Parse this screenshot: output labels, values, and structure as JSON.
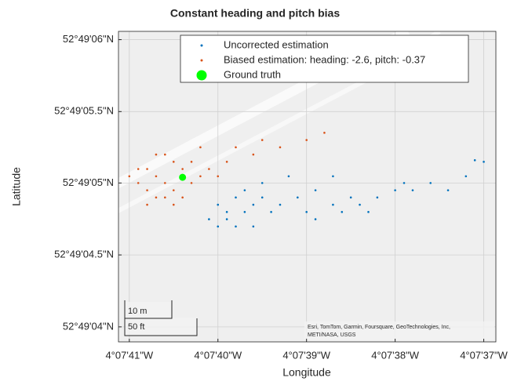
{
  "chart_data": {
    "type": "scatter",
    "title": "Constant heading and pitch bias",
    "x_label": "Longitude",
    "y_label": "Latitude",
    "xlim": [
      -4.12809,
      -4.126906
    ],
    "ylim": [
      52.817749,
      52.818349
    ],
    "xticks": [
      {
        "value": -4.128056,
        "label": "4°07'41\"W"
      },
      {
        "value": -4.127778,
        "label": "4°07'40\"W"
      },
      {
        "value": -4.1275,
        "label": "4°07'39\"W"
      },
      {
        "value": -4.127222,
        "label": "4°07'38\"W"
      },
      {
        "value": -4.126944,
        "label": "4°07'37\"W"
      }
    ],
    "yticks": [
      {
        "value": 52.817778,
        "label": "52°49'04\"N"
      },
      {
        "value": 52.817917,
        "label": "52°49'04.5\"N"
      },
      {
        "value": 52.818056,
        "label": "52°49'05\"N"
      },
      {
        "value": 52.818194,
        "label": "52°49'05.5\"N"
      },
      {
        "value": 52.818333,
        "label": "52°49'06\"N"
      }
    ],
    "grid": true,
    "legend_position": "top",
    "scale_bar": [
      "10 m",
      "50 ft"
    ],
    "attribution": [
      "Esri, TomTom, Garmin, Foursquare, GeoTechnologies, Inc,",
      "METI/NASA, USGS"
    ],
    "series": [
      {
        "name": "Uncorrected estimation",
        "color": "#0072bd",
        "marker_size": 2,
        "x": [
          -4.127778,
          -4.12775,
          -4.127722,
          -4.127694,
          -4.127667,
          -4.127722,
          -4.127806,
          -4.127639,
          -4.12775,
          -4.127694,
          -4.127611,
          -4.127583,
          -4.127528,
          -4.1275,
          -4.127472,
          -4.127417,
          -4.127389,
          -4.127333,
          -4.127278,
          -4.127222,
          -4.127167,
          -4.127111,
          -4.127056,
          -4.127,
          -4.126944,
          -4.126972,
          -4.127417,
          -4.127556,
          -4.127472,
          -4.127667,
          -4.127778,
          -4.127639,
          -4.127361,
          -4.127194,
          -4.127306
        ],
        "y": [
          52.818014,
          52.817986,
          52.818028,
          52.818,
          52.818014,
          52.817972,
          52.817986,
          52.818028,
          52.818,
          52.818042,
          52.818,
          52.818014,
          52.818028,
          52.818,
          52.818042,
          52.818014,
          52.818,
          52.818014,
          52.818028,
          52.818042,
          52.818042,
          52.818056,
          52.818042,
          52.818069,
          52.818097,
          52.8181,
          52.818069,
          52.818069,
          52.817986,
          52.817972,
          52.817972,
          52.818056,
          52.818028,
          52.818056,
          52.818
        ]
      },
      {
        "name": "Biased estimation: heading: -2.6, pitch: -0.37",
        "color": "#d95319",
        "marker_size": 2,
        "x": [
          -4.127944,
          -4.127972,
          -4.127917,
          -4.128,
          -4.127944,
          -4.128028,
          -4.127889,
          -4.127972,
          -4.127917,
          -4.127861,
          -4.128,
          -4.127944,
          -4.127833,
          -4.128028,
          -4.128056,
          -4.127889,
          -4.127972,
          -4.127861,
          -4.127806,
          -4.127778,
          -4.12775,
          -4.127667,
          -4.127639,
          -4.127583,
          -4.1275,
          -4.127444,
          -4.127722,
          -4.127917,
          -4.128,
          -4.127833
        ],
        "y": [
          52.818056,
          52.818069,
          52.818042,
          52.818083,
          52.818028,
          52.818056,
          52.818083,
          52.818028,
          52.818097,
          52.818056,
          52.818042,
          52.818111,
          52.818069,
          52.818083,
          52.818069,
          52.818028,
          52.818111,
          52.818097,
          52.818083,
          52.818069,
          52.818097,
          52.818111,
          52.818139,
          52.818125,
          52.818139,
          52.818153,
          52.818125,
          52.818014,
          52.818014,
          52.818125
        ]
      },
      {
        "name": "Ground truth",
        "color": "#00ff00",
        "marker_size": 9,
        "x": [
          -4.127889
        ],
        "y": [
          52.818067
        ]
      }
    ]
  }
}
